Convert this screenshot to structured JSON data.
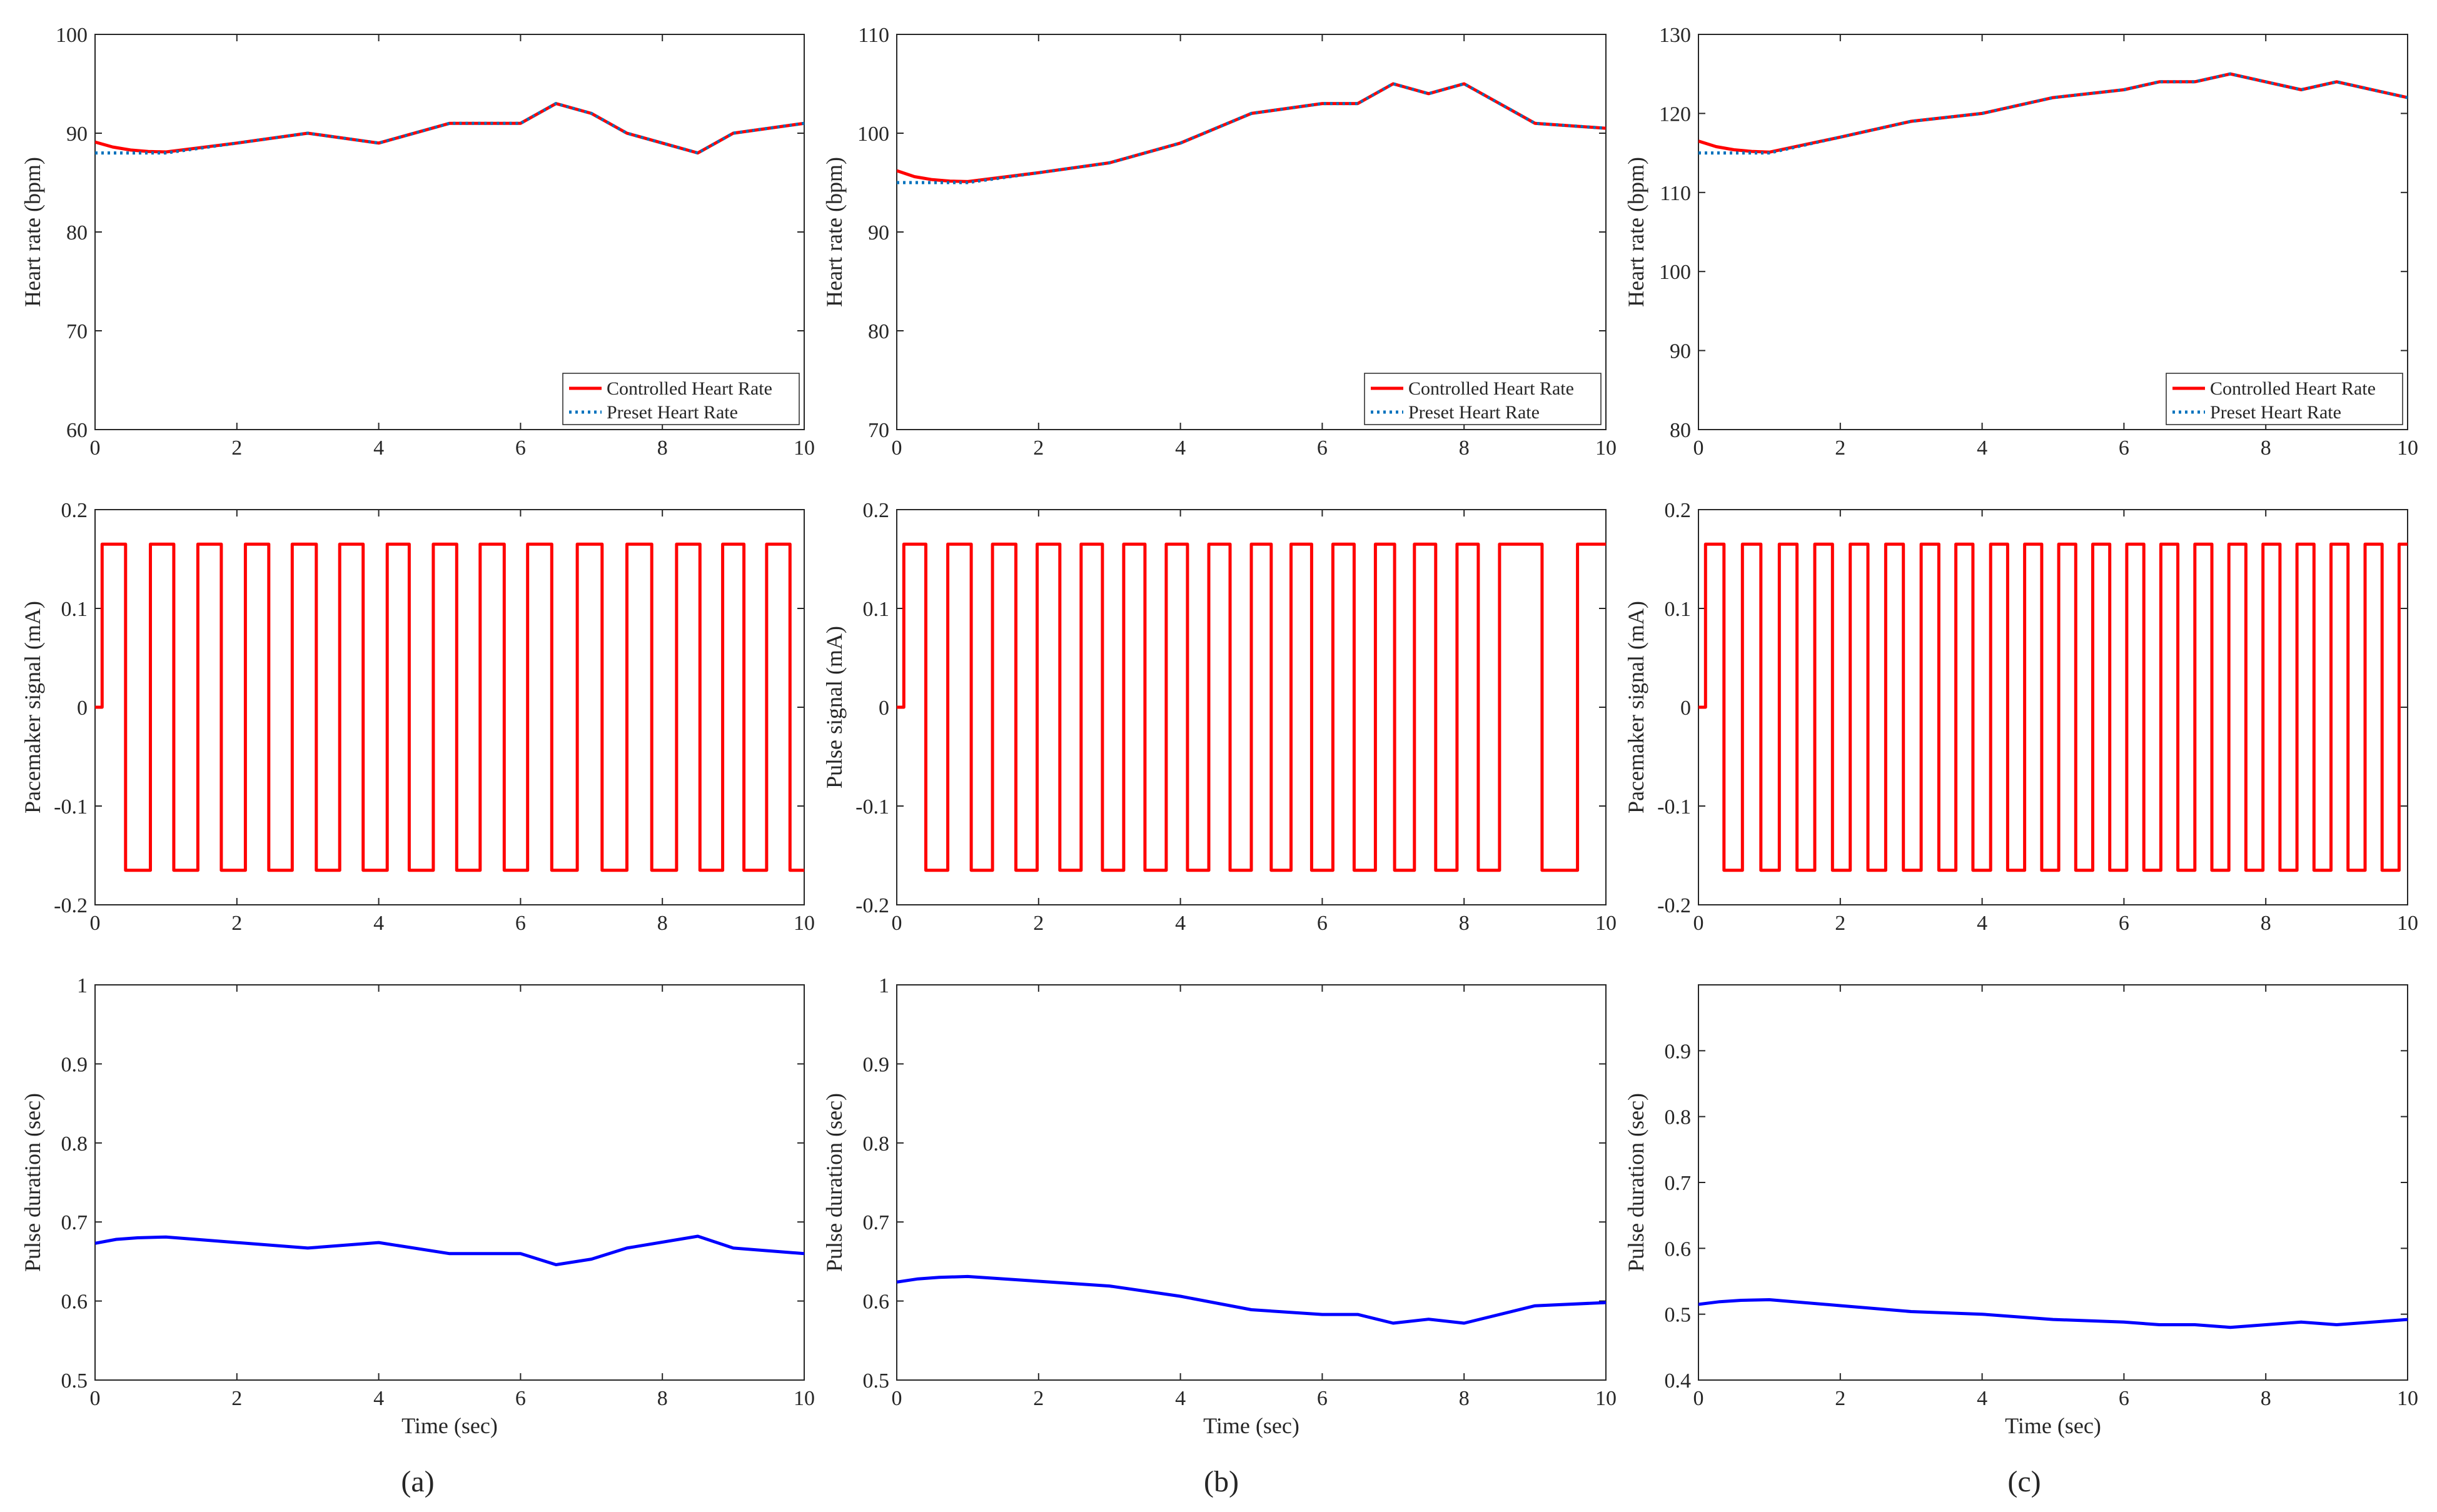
{
  "figure": {
    "panel_labels": [
      "(a)",
      "(b)",
      "(c)"
    ]
  },
  "colors": {
    "controlled": "#ff0000",
    "preset": "#0072bd",
    "pulse_duration": "#0000ff",
    "pacemaker": "#ff0000",
    "axis": "#262626"
  },
  "chart_data": [
    {
      "id": "a-heart",
      "col": 0,
      "row": 0,
      "type": "line",
      "title": "",
      "xlabel": "",
      "ylabel": "Heart rate (bpm)",
      "xlim": [
        0,
        10
      ],
      "ylim": [
        60,
        100
      ],
      "xticks": [
        0,
        2,
        4,
        6,
        8,
        10
      ],
      "yticks": [
        60,
        70,
        80,
        90,
        100
      ],
      "grid": false,
      "legend_position": "bottom-right",
      "series": [
        {
          "name": "Controlled Heart Rate",
          "style": "solid",
          "color_key": "controlled",
          "x": [
            0,
            0.25,
            0.5,
            0.75,
            1,
            2,
            3,
            4,
            5,
            6,
            6.5,
            7,
            7.5,
            8,
            8.5,
            9,
            10
          ],
          "y": [
            89.1,
            88.6,
            88.3,
            88.15,
            88.1,
            89,
            90,
            89,
            91,
            91,
            93,
            92,
            90,
            89,
            88,
            90,
            91
          ]
        },
        {
          "name": "Preset Heart Rate",
          "style": "dotted",
          "color_key": "preset",
          "x": [
            0,
            1,
            2,
            3,
            4,
            5,
            6,
            6.5,
            7,
            7.5,
            8,
            8.5,
            9,
            10
          ],
          "y": [
            88,
            88,
            89,
            90,
            89,
            91,
            91,
            93,
            92,
            90,
            89,
            88,
            90,
            91
          ]
        }
      ]
    },
    {
      "id": "b-heart",
      "col": 1,
      "row": 0,
      "type": "line",
      "title": "",
      "xlabel": "",
      "ylabel": "Heart rate (bpm)",
      "xlim": [
        0,
        10
      ],
      "ylim": [
        70,
        110
      ],
      "xticks": [
        0,
        2,
        4,
        6,
        8,
        10
      ],
      "yticks": [
        70,
        80,
        90,
        100,
        110
      ],
      "grid": false,
      "legend_position": "bottom-right",
      "series": [
        {
          "name": "Controlled Heart Rate",
          "style": "solid",
          "color_key": "controlled",
          "x": [
            0,
            0.25,
            0.5,
            0.75,
            1,
            2,
            3,
            4,
            5,
            6,
            6.5,
            7,
            7.5,
            8,
            9,
            10
          ],
          "y": [
            96.2,
            95.6,
            95.3,
            95.15,
            95.1,
            96,
            97,
            99,
            102,
            103,
            103,
            105,
            104,
            105,
            101,
            100.5
          ]
        },
        {
          "name": "Preset Heart Rate",
          "style": "dotted",
          "color_key": "preset",
          "x": [
            0,
            1,
            2,
            3,
            4,
            5,
            6,
            6.5,
            7,
            7.5,
            8,
            9,
            10
          ],
          "y": [
            95,
            95,
            96,
            97,
            99,
            102,
            103,
            103,
            105,
            104,
            105,
            101,
            100.5
          ]
        }
      ]
    },
    {
      "id": "c-heart",
      "col": 2,
      "row": 0,
      "type": "line",
      "title": "",
      "xlabel": "",
      "ylabel": "Heart rate (bpm)",
      "xlim": [
        0,
        10
      ],
      "ylim": [
        80,
        130
      ],
      "xticks": [
        0,
        2,
        4,
        6,
        8,
        10
      ],
      "yticks": [
        80,
        90,
        100,
        110,
        120,
        130
      ],
      "grid": false,
      "legend_position": "bottom-right",
      "series": [
        {
          "name": "Controlled Heart Rate",
          "style": "solid",
          "color_key": "controlled",
          "x": [
            0,
            0.25,
            0.5,
            0.75,
            1,
            2,
            3,
            4,
            5,
            6,
            6.5,
            7,
            7.5,
            8.5,
            9,
            10
          ],
          "y": [
            116.5,
            115.8,
            115.4,
            115.2,
            115.1,
            117,
            119,
            120,
            122,
            123,
            124,
            124,
            125,
            123,
            124,
            122
          ]
        },
        {
          "name": "Preset Heart Rate",
          "style": "dotted",
          "color_key": "preset",
          "x": [
            0,
            1,
            2,
            3,
            4,
            5,
            6,
            6.5,
            7,
            7.5,
            8.5,
            9,
            10
          ],
          "y": [
            115,
            115,
            117,
            119,
            120,
            122,
            123,
            124,
            124,
            125,
            123,
            124,
            122
          ]
        }
      ]
    },
    {
      "id": "a-pacemaker",
      "col": 0,
      "row": 1,
      "type": "line",
      "title": "",
      "xlabel": "",
      "ylabel": "Pacemaker signal (mA)",
      "xlim": [
        0,
        10
      ],
      "ylim": [
        -0.2,
        0.2
      ],
      "xticks": [
        0,
        2,
        4,
        6,
        8,
        10
      ],
      "yticks": [
        -0.2,
        -0.1,
        0,
        0.1,
        0.2
      ],
      "grid": false,
      "series": [
        {
          "name": "Pacemaker signal",
          "style": "step",
          "color_key": "pacemaker",
          "amplitude": 0.165,
          "start": 0.1,
          "edges": [
            0.1,
            0.43,
            0.78,
            1.11,
            1.45,
            1.78,
            2.12,
            2.45,
            2.78,
            3.12,
            3.45,
            3.78,
            4.12,
            4.43,
            4.77,
            5.1,
            5.43,
            5.77,
            6.1,
            6.44,
            6.8,
            7.15,
            7.5,
            7.85,
            8.2,
            8.53,
            8.85,
            9.15,
            9.47,
            9.8,
            10
          ]
        }
      ]
    },
    {
      "id": "b-pulse-signal",
      "col": 1,
      "row": 1,
      "type": "line",
      "title": "",
      "xlabel": "",
      "ylabel": "Pulse signal (mA)",
      "xlim": [
        0,
        10
      ],
      "ylim": [
        -0.2,
        0.2
      ],
      "xticks": [
        0,
        2,
        4,
        6,
        8,
        10
      ],
      "yticks": [
        -0.2,
        -0.1,
        0,
        0.1,
        0.2
      ],
      "grid": false,
      "series": [
        {
          "name": "Pulse signal",
          "style": "step",
          "color_key": "pacemaker",
          "amplitude": 0.165,
          "start": 0.1,
          "edges": [
            0.1,
            0.41,
            0.72,
            1.05,
            1.35,
            1.68,
            1.98,
            2.3,
            2.6,
            2.9,
            3.2,
            3.5,
            3.8,
            4.1,
            4.4,
            4.7,
            5,
            5.28,
            5.56,
            5.85,
            6.15,
            6.45,
            6.75,
            7.02,
            7.3,
            7.6,
            7.9,
            8.2,
            8.5,
            9.1,
            9.6,
            10
          ]
        }
      ]
    },
    {
      "id": "c-pacemaker",
      "col": 2,
      "row": 1,
      "type": "line",
      "title": "",
      "xlabel": "",
      "ylabel": "Pacemaker signal (mA)",
      "xlim": [
        0,
        10
      ],
      "ylim": [
        -0.2,
        0.2
      ],
      "xticks": [
        0,
        2,
        4,
        6,
        8,
        10
      ],
      "yticks": [
        -0.2,
        -0.1,
        0,
        0.1,
        0.2
      ],
      "grid": false,
      "series": [
        {
          "name": "Pacemaker signal",
          "style": "step",
          "color_key": "pacemaker",
          "amplitude": 0.165,
          "start": 0.1,
          "edges": [
            0.1,
            0.36,
            0.62,
            0.88,
            1.14,
            1.39,
            1.64,
            1.89,
            2.14,
            2.39,
            2.64,
            2.89,
            3.14,
            3.39,
            3.63,
            3.87,
            4.12,
            4.36,
            4.6,
            4.84,
            5.08,
            5.32,
            5.56,
            5.8,
            6.04,
            6.28,
            6.52,
            6.76,
            7,
            7.24,
            7.48,
            7.72,
            7.96,
            8.2,
            8.44,
            8.68,
            8.92,
            9.16,
            9.4,
            9.64,
            9.88,
            10
          ]
        }
      ]
    },
    {
      "id": "a-duration",
      "col": 0,
      "row": 2,
      "type": "line",
      "title": "",
      "xlabel": "Time (sec)",
      "ylabel": "Pulse duration (sec)",
      "xlim": [
        0,
        10
      ],
      "ylim": [
        0.5,
        1
      ],
      "xticks": [
        0,
        2,
        4,
        6,
        8,
        10
      ],
      "yticks": [
        0.5,
        0.6,
        0.7,
        0.8,
        0.9,
        1
      ],
      "grid": false,
      "series": [
        {
          "name": "Pulse duration",
          "style": "solid",
          "color_key": "pulse_duration",
          "x": [
            0,
            0.3,
            0.6,
            1,
            2,
            3,
            4,
            5,
            6,
            6.5,
            7,
            7.5,
            8.5,
            9,
            10
          ],
          "y": [
            0.673,
            0.678,
            0.68,
            0.681,
            0.674,
            0.667,
            0.674,
            0.66,
            0.66,
            0.646,
            0.653,
            0.667,
            0.682,
            0.667,
            0.66
          ]
        }
      ]
    },
    {
      "id": "b-duration",
      "col": 1,
      "row": 2,
      "type": "line",
      "title": "",
      "xlabel": "Time (sec)",
      "ylabel": "Pulse duration (sec)",
      "xlim": [
        0,
        10
      ],
      "ylim": [
        0.5,
        1
      ],
      "xticks": [
        0,
        2,
        4,
        6,
        8,
        10
      ],
      "yticks": [
        0.5,
        0.6,
        0.7,
        0.8,
        0.9,
        1
      ],
      "grid": false,
      "series": [
        {
          "name": "Pulse duration",
          "style": "solid",
          "color_key": "pulse_duration",
          "x": [
            0,
            0.3,
            0.6,
            1,
            2,
            3,
            4,
            5,
            6,
            6.5,
            7,
            7.5,
            8,
            9,
            10
          ],
          "y": [
            0.624,
            0.628,
            0.63,
            0.631,
            0.625,
            0.619,
            0.606,
            0.589,
            0.583,
            0.583,
            0.572,
            0.577,
            0.572,
            0.594,
            0.598
          ]
        }
      ]
    },
    {
      "id": "c-duration",
      "col": 2,
      "row": 2,
      "type": "line",
      "title": "",
      "xlabel": "Time (sec)",
      "ylabel": "Pulse duration (sec)",
      "xlim": [
        0,
        10
      ],
      "ylim": [
        0.4,
        1
      ],
      "xticks": [
        0,
        2,
        4,
        6,
        8,
        10
      ],
      "yticks": [
        0.4,
        0.5,
        0.6,
        0.7,
        0.8,
        0.9
      ],
      "grid": false,
      "series": [
        {
          "name": "Pulse duration",
          "style": "solid",
          "color_key": "pulse_duration",
          "x": [
            0,
            0.3,
            0.6,
            1,
            2,
            3,
            4,
            5,
            6,
            6.5,
            7,
            7.5,
            8.5,
            9,
            10
          ],
          "y": [
            0.515,
            0.519,
            0.521,
            0.522,
            0.513,
            0.504,
            0.5,
            0.492,
            0.488,
            0.484,
            0.484,
            0.48,
            0.488,
            0.484,
            0.492
          ]
        }
      ]
    }
  ]
}
